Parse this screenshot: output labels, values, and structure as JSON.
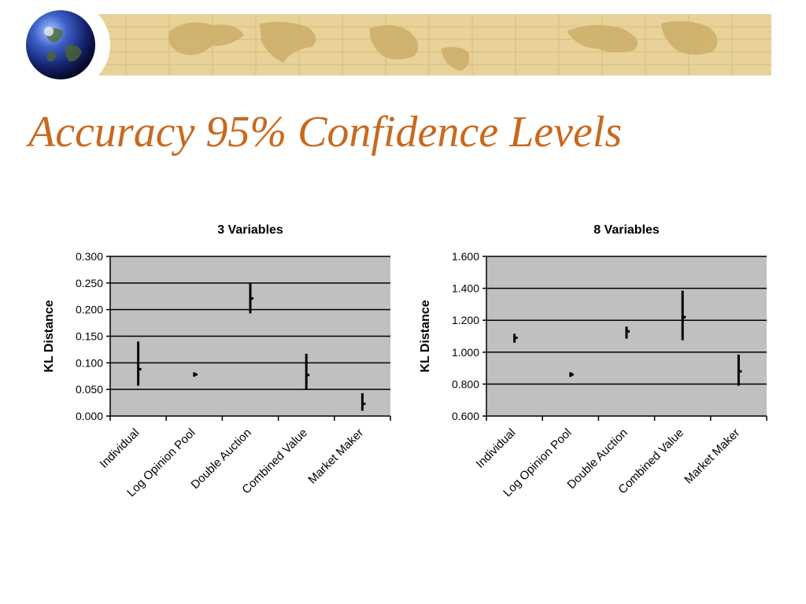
{
  "slide": {
    "title": "Accuracy 95% Confidence Levels"
  },
  "colors": {
    "title": "#C8691E",
    "plot_background": "#C0C0C0",
    "banner": "#E8D29A",
    "marks": "#000000"
  },
  "chart_data": [
    {
      "type": "error-bar",
      "title": "3 Variables",
      "ylabel": "KL Distance",
      "xlabel": "",
      "categories": [
        "Individual",
        "Log Opinion Pool",
        "Double Auction",
        "Combined Value",
        "Market Maker"
      ],
      "mean": [
        0.088,
        0.078,
        0.221,
        0.077,
        0.023
      ],
      "lower": [
        0.057,
        0.074,
        0.193,
        0.05,
        0.01
      ],
      "upper": [
        0.14,
        0.082,
        0.249,
        0.117,
        0.043
      ],
      "ylim": [
        0,
        0.3
      ],
      "yticks": [
        "0.000",
        "0.050",
        "0.100",
        "0.150",
        "0.200",
        "0.250",
        "0.300"
      ],
      "grid": true
    },
    {
      "type": "error-bar",
      "title": "8 Variables",
      "ylabel": "KL Distance",
      "xlabel": "",
      "categories": [
        "Individual",
        "Log Opinion Pool",
        "Double Auction",
        "Combined Value",
        "Market Maker"
      ],
      "mean": [
        1.09,
        0.86,
        1.13,
        1.22,
        0.88
      ],
      "lower": [
        1.06,
        0.845,
        1.085,
        1.075,
        0.79
      ],
      "upper": [
        1.115,
        0.875,
        1.16,
        1.385,
        0.985
      ],
      "ylim": [
        0.6,
        1.6
      ],
      "yticks": [
        "0.600",
        "0.800",
        "1.000",
        "1.200",
        "1.400",
        "1.600"
      ],
      "grid": true
    }
  ]
}
